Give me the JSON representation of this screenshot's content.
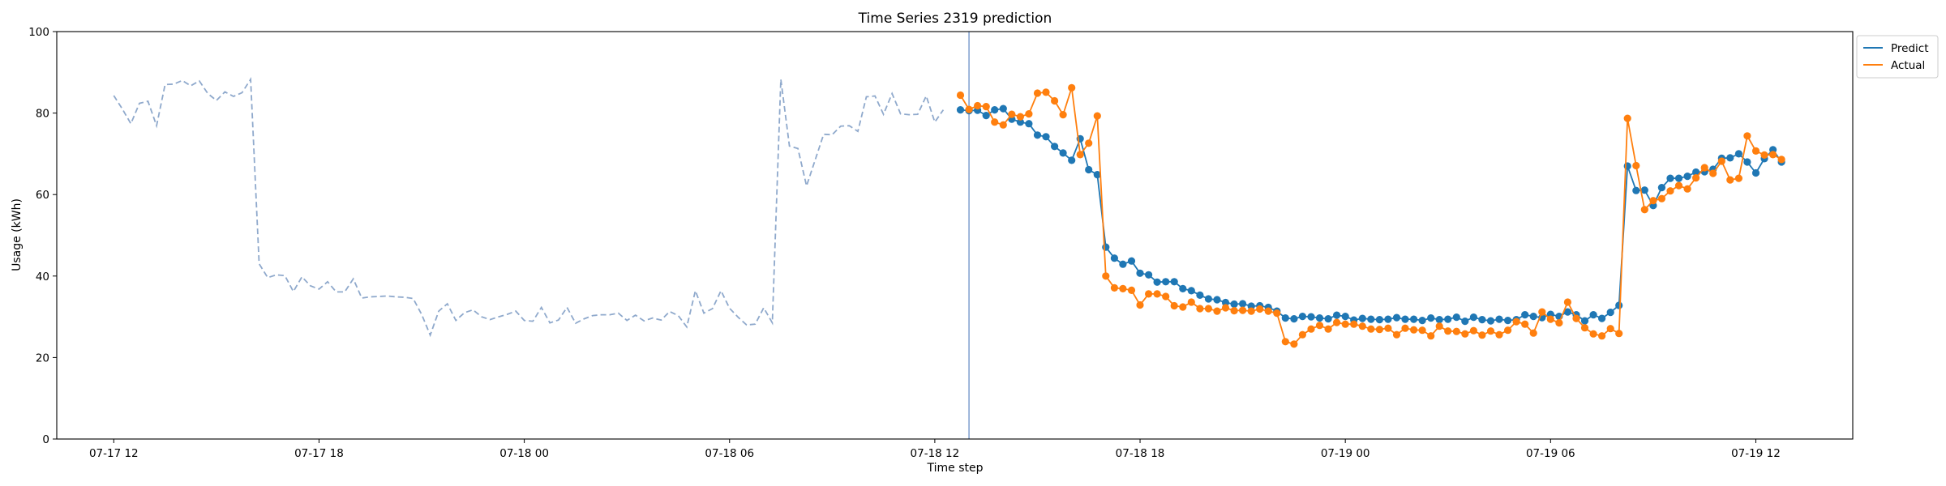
{
  "chart_data": {
    "type": "line",
    "title": "Time Series 2319 prediction",
    "xlabel": "Time step",
    "ylabel": "Usage (kWh)",
    "ylim": [
      0,
      100
    ],
    "yticks": [
      0,
      20,
      40,
      60,
      80,
      100
    ],
    "xlim": [
      "2024-07-17 10:20",
      "2024-07-19 14:50"
    ],
    "xticks": [
      {
        "t": "2024-07-17 12:00",
        "label": "07-17 12"
      },
      {
        "t": "2024-07-17 18:00",
        "label": "07-17 18"
      },
      {
        "t": "2024-07-18 00:00",
        "label": "07-18 00"
      },
      {
        "t": "2024-07-18 06:00",
        "label": "07-18 06"
      },
      {
        "t": "2024-07-18 12:00",
        "label": "07-18 12"
      },
      {
        "t": "2024-07-18 18:00",
        "label": "07-18 18"
      },
      {
        "t": "2024-07-19 00:00",
        "label": "07-19 00"
      },
      {
        "t": "2024-07-19 06:00",
        "label": "07-19 06"
      },
      {
        "t": "2024-07-19 12:00",
        "label": "07-19 12"
      }
    ],
    "forecast_start": "2024-07-18 13:00",
    "legend": "top-right",
    "grid": false,
    "series": [
      {
        "name": "",
        "color": "#8fa9cc",
        "style": "dashed",
        "start": "2024-07-17 12:00",
        "step_minutes": 15,
        "values": [
          84.3,
          81.0,
          77.4,
          82.4,
          82.9,
          76.9,
          87.0,
          87.1,
          88.0,
          86.7,
          87.9,
          84.8,
          83.1,
          85.2,
          84.1,
          85.0,
          88.3,
          43.0,
          39.6,
          40.3,
          40.1,
          36.2,
          39.8,
          37.6,
          36.8,
          38.6,
          36.1,
          36.1,
          39.3,
          34.6,
          34.9,
          35.0,
          35.1,
          34.9,
          34.8,
          34.5,
          30.6,
          25.5,
          31.4,
          33.2,
          29.1,
          31.0,
          31.7,
          30.0,
          29.3,
          30.0,
          30.6,
          31.4,
          29.1,
          28.9,
          32.3,
          28.5,
          29.2,
          32.3,
          28.4,
          29.5,
          30.3,
          30.5,
          30.5,
          30.9,
          29.1,
          30.4,
          29.0,
          29.7,
          29.2,
          31.3,
          30.3,
          27.5,
          36.4,
          30.9,
          32.0,
          36.4,
          32.1,
          29.9,
          28.0,
          28.2,
          32.2,
          28.5,
          88.3,
          71.9,
          71.3,
          62.1,
          68.4,
          74.8,
          74.7,
          76.8,
          76.9,
          75.5,
          84.0,
          84.2,
          79.7,
          84.8,
          79.8,
          79.6,
          79.7,
          84.2,
          77.8,
          80.8
        ]
      },
      {
        "name": "Predict",
        "color": "#1f77b4",
        "style": "solid-marker",
        "start": "2024-07-18 12:45",
        "step_minutes": 15,
        "values": [
          80.8,
          80.6,
          80.7,
          79.4,
          80.8,
          81.1,
          78.5,
          77.8,
          77.4,
          74.6,
          74.2,
          71.8,
          70.2,
          68.4,
          73.7,
          66.1,
          64.9,
          47.1,
          44.4,
          42.9,
          43.7,
          40.7,
          40.3,
          38.5,
          38.6,
          38.6,
          36.9,
          36.4,
          35.3,
          34.4,
          34.2,
          33.5,
          33.1,
          33.2,
          32.6,
          32.7,
          32.3,
          31.4,
          29.7,
          29.5,
          30.1,
          30.0,
          29.7,
          29.5,
          30.4,
          30.1,
          29.2,
          29.6,
          29.4,
          29.3,
          29.4,
          29.8,
          29.4,
          29.4,
          29.1,
          29.7,
          29.3,
          29.4,
          29.9,
          28.9,
          29.9,
          29.3,
          29.0,
          29.4,
          29.1,
          29.3,
          30.5,
          30.1,
          29.8,
          30.6,
          30.1,
          31.2,
          30.5,
          29.0,
          30.5,
          29.6,
          31.1,
          32.8,
          67.0,
          61.0,
          61.1,
          57.3,
          61.7,
          64.0,
          64.0,
          64.5,
          65.5,
          65.6,
          66.2,
          68.9,
          69.0,
          70.0,
          68.0,
          65.3,
          68.8,
          71.0,
          68.0
        ]
      },
      {
        "name": "Actual",
        "color": "#ff7f0e",
        "style": "solid-marker",
        "start": "2024-07-18 12:45",
        "step_minutes": 15,
        "values": [
          84.4,
          80.9,
          81.8,
          81.6,
          77.8,
          77.1,
          79.7,
          79.1,
          79.8,
          84.9,
          85.1,
          83.0,
          79.6,
          86.2,
          69.8,
          72.6,
          79.3,
          40.0,
          37.1,
          36.9,
          36.5,
          32.9,
          35.6,
          35.6,
          35.0,
          32.7,
          32.4,
          33.6,
          32.0,
          32.0,
          31.4,
          32.2,
          31.5,
          31.6,
          31.4,
          31.9,
          31.4,
          30.9,
          23.9,
          23.3,
          25.6,
          27.0,
          27.9,
          27.0,
          28.6,
          28.2,
          28.2,
          27.7,
          27.0,
          26.9,
          27.2,
          25.6,
          27.2,
          26.8,
          26.7,
          25.3,
          27.7,
          26.5,
          26.4,
          25.8,
          26.6,
          25.5,
          26.5,
          25.6,
          26.7,
          28.8,
          28.2,
          26.0,
          31.2,
          29.4,
          28.5,
          33.6,
          29.6,
          27.3,
          25.8,
          25.3,
          27.1,
          25.9,
          78.7,
          67.1,
          56.3,
          58.5,
          59.0,
          60.9,
          62.2,
          61.4,
          64.1,
          66.6,
          65.2,
          68.2,
          63.6,
          64.0,
          74.4,
          70.7,
          69.7,
          69.8,
          68.6
        ]
      }
    ]
  }
}
